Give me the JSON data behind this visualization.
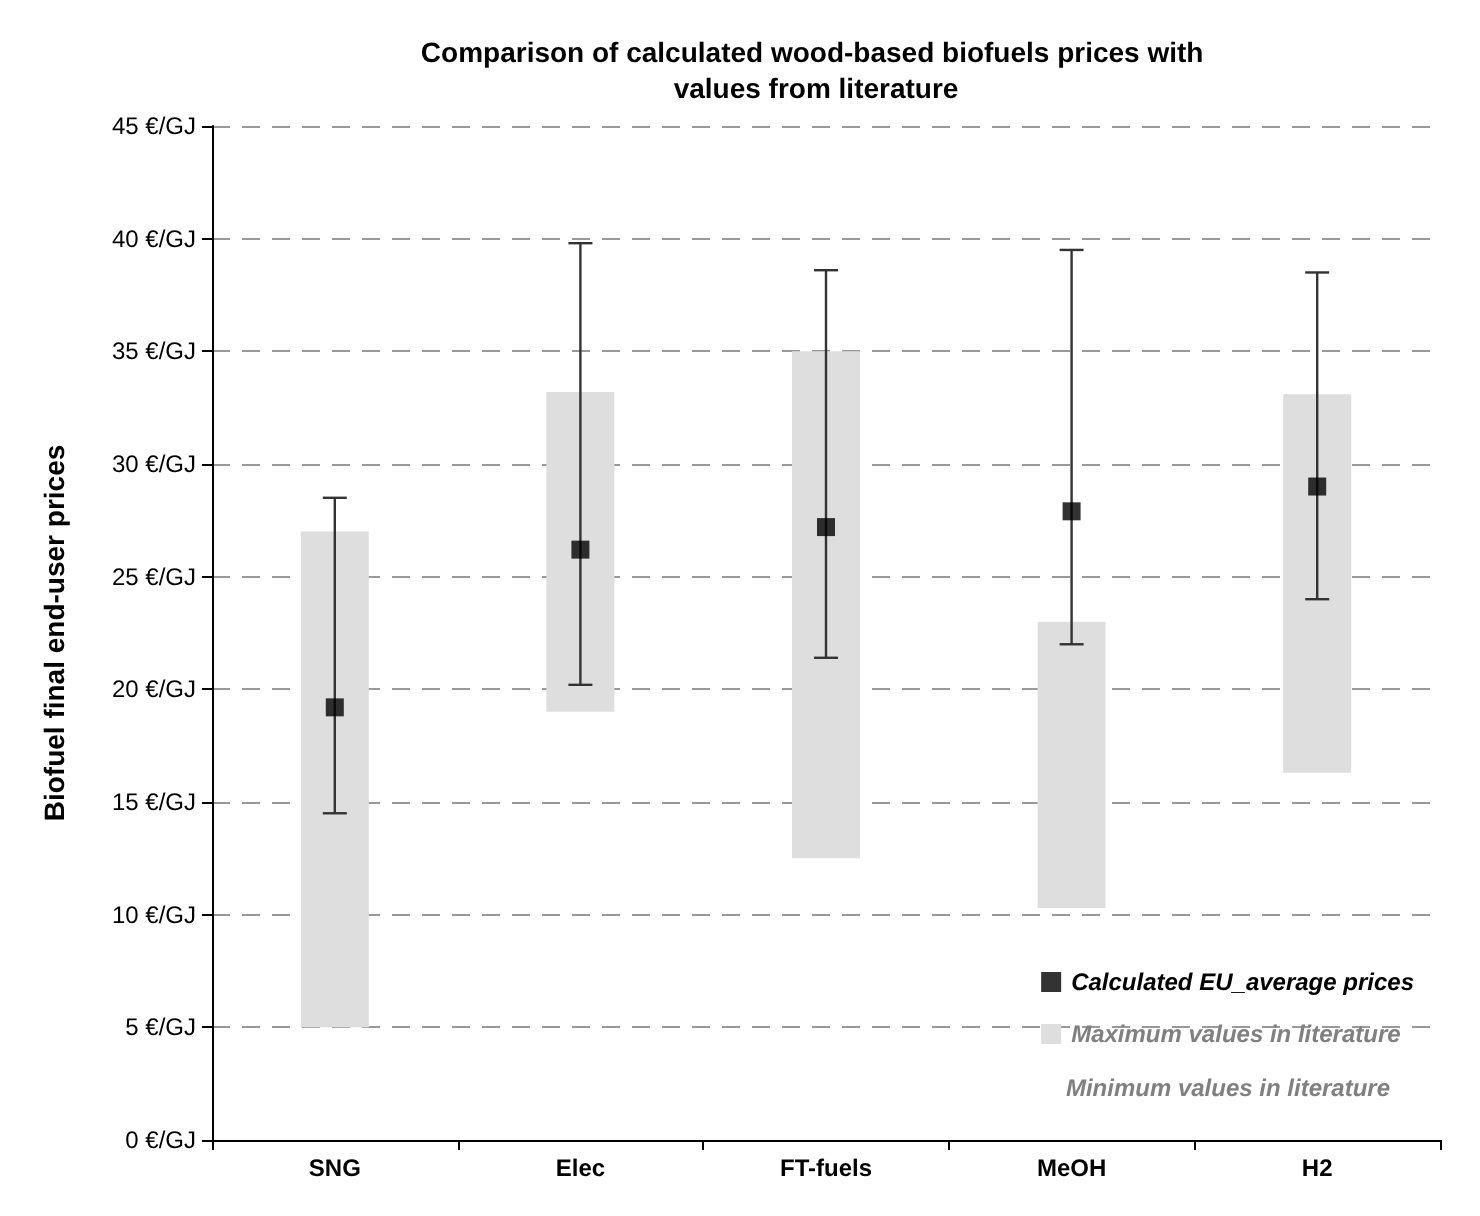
{
  "chart_data": {
    "type": "bar",
    "title": "Comparison of calculated wood-based biofuels prices with values from literature",
    "ylabel": "Biofuel final end-user prices",
    "categories": [
      "SNG",
      "Elec",
      "FT-fuels",
      "MeOH",
      "H2"
    ],
    "series": [
      {
        "name": "Maximum values in literature",
        "color": "#dedede",
        "base": [
          5,
          19,
          12.5,
          10.3,
          16.3
        ],
        "values": [
          22,
          14.2,
          22.5,
          12.7,
          16.8
        ]
      },
      {
        "type": "scatter",
        "name": "Calculated EU_average prices",
        "color": "#000000",
        "marker": "square",
        "values": [
          19.2,
          26.2,
          27.2,
          27.9,
          29
        ],
        "errors": [
          [
            14.5,
            28.5
          ],
          [
            20.2,
            39.8
          ],
          [
            21.4,
            38.6
          ],
          [
            22,
            39.5
          ],
          [
            24,
            38.5
          ]
        ]
      }
    ],
    "ylim": [
      0,
      45
    ],
    "yticks": [
      {
        "value": 0,
        "label": "0 €/GJ"
      },
      {
        "value": 5,
        "label": "5 €/GJ"
      },
      {
        "value": 10,
        "label": "10 €/GJ"
      },
      {
        "value": 15,
        "label": "15 €/GJ"
      },
      {
        "value": 20,
        "label": "20 €/GJ"
      },
      {
        "value": 25,
        "label": "25 €/GJ"
      },
      {
        "value": 30,
        "label": "30 €/GJ"
      },
      {
        "value": 35,
        "label": "35 €/GJ"
      },
      {
        "value": 40,
        "label": "40 €/GJ"
      },
      {
        "value": 45,
        "label": "45 €/GJ"
      }
    ],
    "grid": "y",
    "legend": "bottom right",
    "annotations": [
      "Minimum values in literature"
    ]
  }
}
